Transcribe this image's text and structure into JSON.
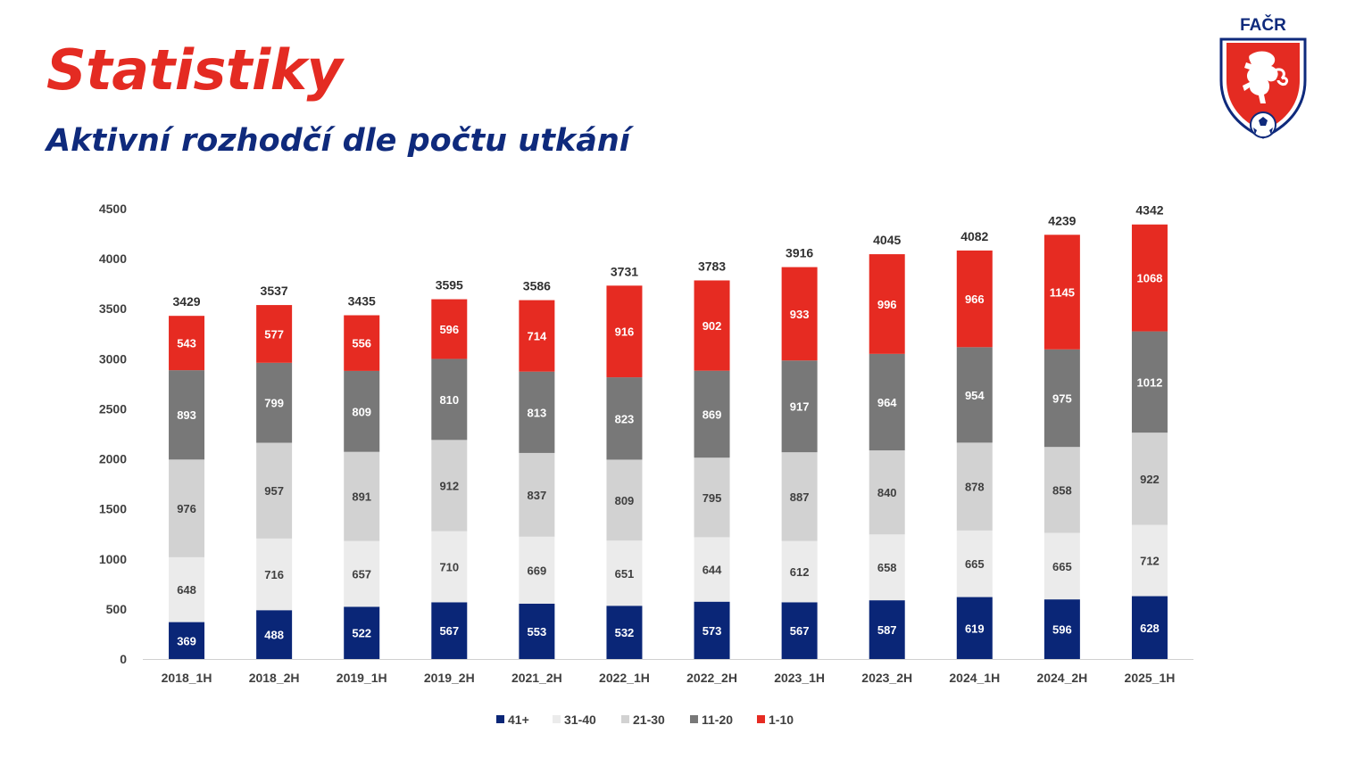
{
  "header": {
    "title": "Statistiky",
    "subtitle": "Aktivní rozhodčí dle počtu utkání"
  },
  "logo": {
    "text": "FAČR",
    "icon": "lion-crest-icon",
    "colors": {
      "red": "#e42b22",
      "blue": "#0f2a7c"
    }
  },
  "chart_data": {
    "type": "bar",
    "stacked": true,
    "categories": [
      "2018_1H",
      "2018_2H",
      "2019_1H",
      "2019_2H",
      "2021_2H",
      "2022_1H",
      "2022_2H",
      "2023_1H",
      "2023_2H",
      "2024_1H",
      "2024_2H",
      "2025_1H"
    ],
    "series": [
      {
        "name": "41+",
        "color": "#0a2677",
        "label_color": "#ffffff",
        "values": [
          369,
          488,
          522,
          567,
          553,
          532,
          573,
          567,
          587,
          619,
          596,
          628
        ]
      },
      {
        "name": "31-40",
        "color": "#ebebeb",
        "label_color": "#404040",
        "values": [
          648,
          716,
          657,
          710,
          669,
          651,
          644,
          612,
          658,
          665,
          665,
          712
        ]
      },
      {
        "name": "21-30",
        "color": "#d2d2d2",
        "label_color": "#404040",
        "values": [
          976,
          957,
          891,
          912,
          837,
          809,
          795,
          887,
          840,
          878,
          858,
          922
        ]
      },
      {
        "name": "11-20",
        "color": "#787878",
        "label_color": "#ffffff",
        "values": [
          893,
          799,
          809,
          810,
          813,
          823,
          869,
          917,
          964,
          954,
          975,
          1012
        ]
      },
      {
        "name": "1-10",
        "color": "#e62b22",
        "label_color": "#ffffff",
        "values": [
          543,
          577,
          556,
          596,
          714,
          916,
          902,
          933,
          996,
          966,
          1145,
          1068
        ]
      }
    ],
    "totals": [
      3429,
      3537,
      3435,
      3595,
      3586,
      3731,
      3783,
      3916,
      4045,
      4082,
      4239,
      4342
    ],
    "yticks": [
      "0",
      "500",
      "1000",
      "1500",
      "2000",
      "2500",
      "3000",
      "3500",
      "4000",
      "4500"
    ],
    "ylim": [
      0,
      4500
    ],
    "grid": false,
    "legend_position": "bottom"
  }
}
